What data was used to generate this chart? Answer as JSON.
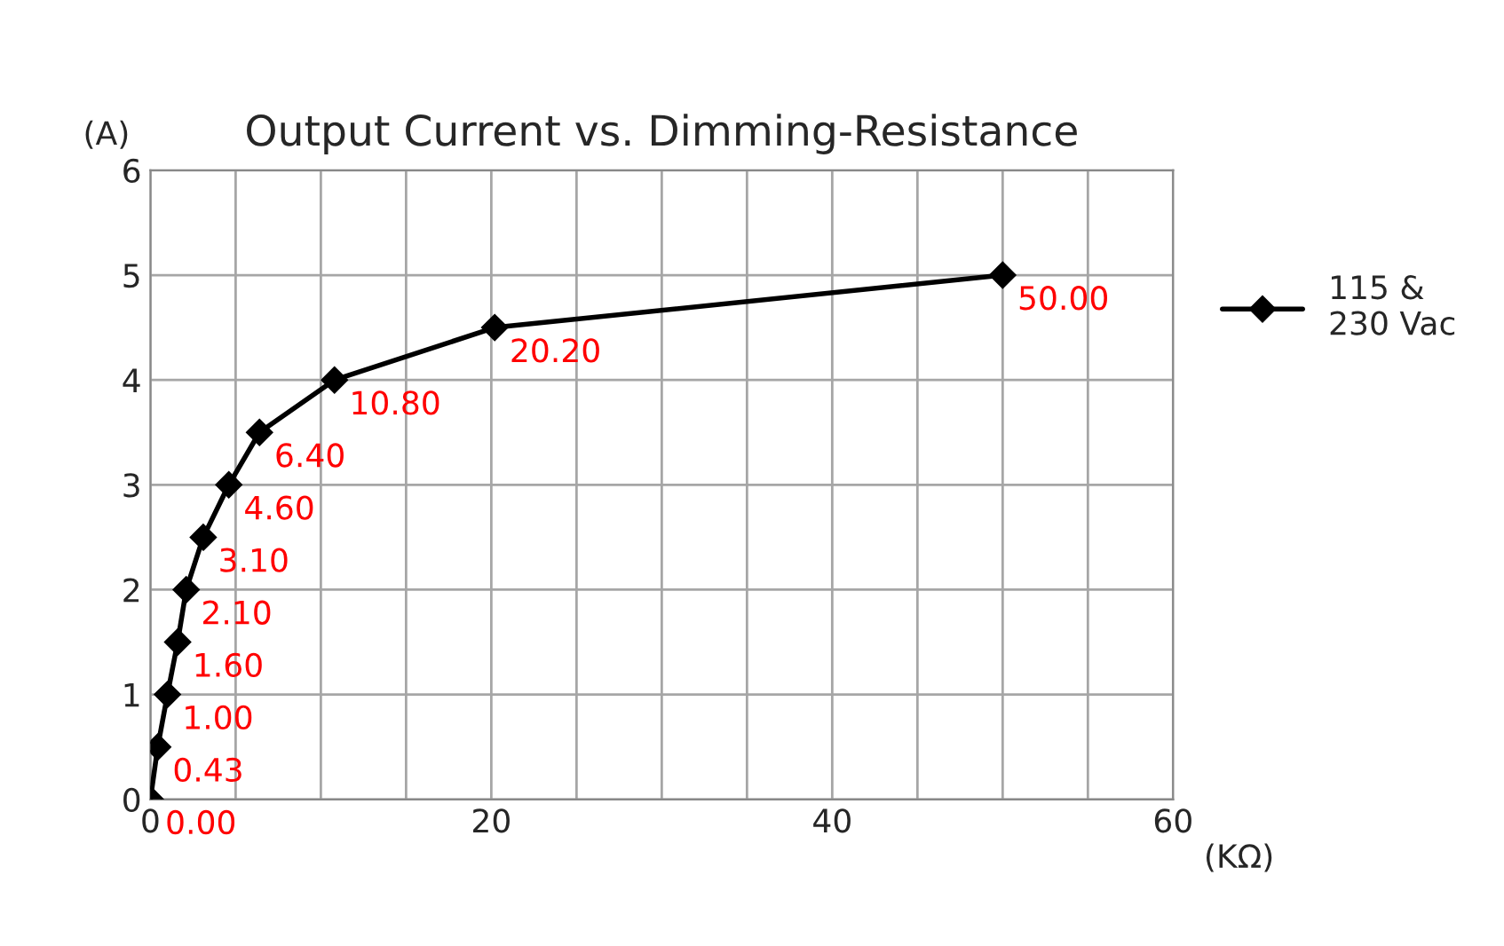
{
  "chart_data": {
    "type": "line",
    "title": "Output Current vs. Dimming-Resistance",
    "ylabel": "(A)",
    "xlabel": "(KΩ)",
    "series": [
      {
        "name": "115 &\n230 Vac",
        "color": "#000000",
        "x": [
          0,
          0.43,
          1.0,
          1.6,
          2.1,
          3.1,
          4.6,
          6.4,
          10.8,
          20.2,
          50.0
        ],
        "values": [
          0,
          0.5,
          1,
          1.5,
          2,
          2.5,
          3,
          3.5,
          4,
          4.5,
          5
        ]
      }
    ],
    "annotations": [
      {
        "text": "0.00",
        "x": 0,
        "y": 0
      },
      {
        "text": "0.43",
        "x": 0.43,
        "y": 0.5
      },
      {
        "text": "1.00",
        "x": 1.0,
        "y": 1
      },
      {
        "text": "1.60",
        "x": 1.6,
        "y": 1.5
      },
      {
        "text": "2.10",
        "x": 2.1,
        "y": 2
      },
      {
        "text": "3.10",
        "x": 3.1,
        "y": 2.5
      },
      {
        "text": "4.60",
        "x": 4.6,
        "y": 3
      },
      {
        "text": "6.40",
        "x": 6.4,
        "y": 3.5
      },
      {
        "text": "10.80",
        "x": 10.8,
        "y": 4
      },
      {
        "text": "20.20",
        "x": 20.2,
        "y": 4.5
      },
      {
        "text": "50.00",
        "x": 50.0,
        "y": 5
      }
    ],
    "xlim": [
      0,
      60
    ],
    "xticks": [
      0,
      {
        "value": 5,
        "label": null
      },
      {
        "value": 10,
        "label": null
      },
      {
        "value": 15,
        "label": null
      },
      20,
      {
        "value": 25,
        "label": null
      },
      {
        "value": 30,
        "label": null
      },
      {
        "value": 35,
        "label": null
      },
      40,
      {
        "value": 45,
        "label": null
      },
      {
        "value": 50,
        "label": null
      },
      {
        "value": 55,
        "label": null
      },
      60
    ],
    "ylim": [
      0,
      6
    ],
    "yticks": [
      0,
      1,
      2,
      3,
      4,
      5,
      6
    ],
    "grid": true,
    "legend": "right",
    "marker": "diamond",
    "line_style": "solid"
  }
}
